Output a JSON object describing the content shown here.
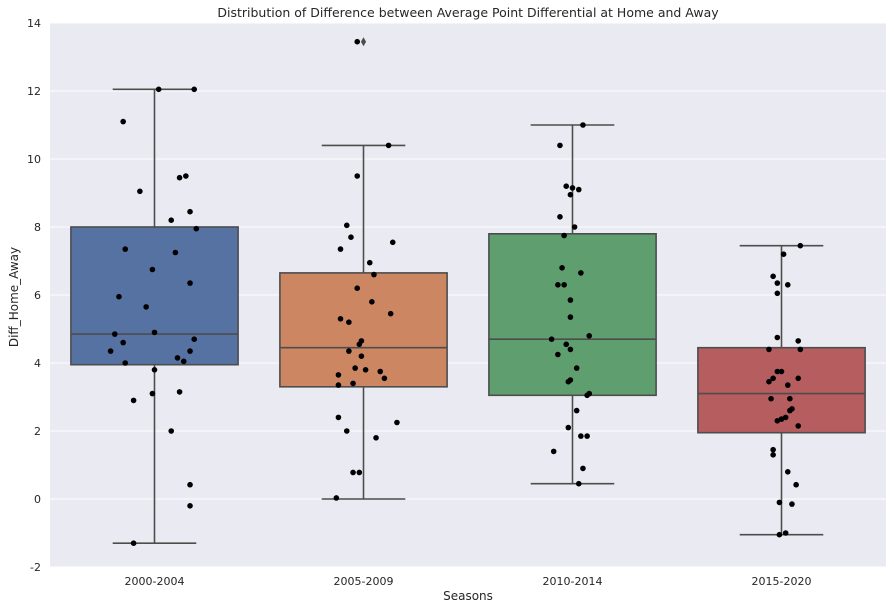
{
  "chart_data": {
    "type": "box",
    "title": "Distribution of Difference between Average Point Differential at Home and Away",
    "xlabel": "Seasons",
    "ylabel": "Diff_Home_Away",
    "ylim": [
      -2,
      14
    ],
    "yticks": [
      -2,
      0,
      2,
      4,
      6,
      8,
      10,
      12,
      14
    ],
    "grid": true,
    "categories": [
      "2000-2004",
      "2005-2009",
      "2010-2014",
      "2015-2020"
    ],
    "colors": [
      "#5572a3",
      "#cc8661",
      "#5f9e6e",
      "#b65d60"
    ],
    "boxes": [
      {
        "whisker_low": -1.3,
        "q1": 3.95,
        "median": 4.85,
        "q3": 8.0,
        "whisker_high": 12.05,
        "outliers": []
      },
      {
        "whisker_low": 0.0,
        "q1": 3.3,
        "median": 4.45,
        "q3": 6.65,
        "whisker_high": 10.4,
        "outliers": [
          13.45
        ]
      },
      {
        "whisker_low": 0.45,
        "q1": 3.05,
        "median": 4.7,
        "q3": 7.8,
        "whisker_high": 11.0,
        "outliers": []
      },
      {
        "whisker_low": -1.05,
        "q1": 1.95,
        "median": 3.1,
        "q3": 4.45,
        "whisker_high": 7.45,
        "outliers": []
      }
    ],
    "points": [
      [
        [
          -1.3,
          -0.1
        ],
        [
          -0.2,
          0.17
        ],
        [
          0.42,
          0.17
        ],
        [
          2.0,
          0.08
        ],
        [
          2.9,
          -0.1
        ],
        [
          3.1,
          -0.01
        ],
        [
          3.15,
          0.12
        ],
        [
          3.8,
          0.0
        ],
        [
          4.0,
          -0.14
        ],
        [
          4.05,
          0.14
        ],
        [
          4.15,
          0.11
        ],
        [
          4.35,
          -0.21
        ],
        [
          4.35,
          0.17
        ],
        [
          4.6,
          -0.15
        ],
        [
          4.7,
          0.19
        ],
        [
          4.85,
          -0.19
        ],
        [
          4.9,
          0.0
        ],
        [
          5.65,
          -0.04
        ],
        [
          5.95,
          -0.17
        ],
        [
          6.35,
          0.17
        ],
        [
          6.75,
          -0.01
        ],
        [
          7.25,
          0.1
        ],
        [
          7.35,
          -0.14
        ],
        [
          7.95,
          0.2
        ],
        [
          8.2,
          0.08
        ],
        [
          8.45,
          0.17
        ],
        [
          9.05,
          -0.07
        ],
        [
          9.45,
          0.12
        ],
        [
          9.5,
          0.15
        ],
        [
          11.1,
          -0.15
        ],
        [
          12.05,
          0.02
        ],
        [
          12.05,
          0.19
        ]
      ],
      [
        [
          0.03,
          -0.13
        ],
        [
          0.78,
          -0.05
        ],
        [
          0.78,
          -0.02
        ],
        [
          1.8,
          0.06
        ],
        [
          2.0,
          -0.08
        ],
        [
          2.25,
          0.16
        ],
        [
          2.4,
          -0.12
        ],
        [
          3.35,
          -0.12
        ],
        [
          3.4,
          -0.05
        ],
        [
          3.55,
          0.1
        ],
        [
          3.65,
          -0.12
        ],
        [
          3.75,
          0.08
        ],
        [
          3.8,
          0.01
        ],
        [
          3.85,
          -0.04
        ],
        [
          4.2,
          -0.01
        ],
        [
          4.35,
          -0.07
        ],
        [
          4.55,
          -0.02
        ],
        [
          4.65,
          -0.01
        ],
        [
          5.2,
          -0.07
        ],
        [
          5.3,
          -0.11
        ],
        [
          5.45,
          0.13
        ],
        [
          5.8,
          0.04
        ],
        [
          6.2,
          -0.03
        ],
        [
          6.6,
          0.05
        ],
        [
          6.95,
          0.03
        ],
        [
          7.35,
          -0.11
        ],
        [
          7.55,
          0.14
        ],
        [
          7.7,
          -0.06
        ],
        [
          8.05,
          -0.08
        ],
        [
          9.5,
          -0.03
        ],
        [
          10.4,
          0.12
        ],
        [
          13.45,
          -0.03
        ]
      ],
      [
        [
          0.45,
          0.03
        ],
        [
          0.9,
          0.05
        ],
        [
          1.4,
          -0.09
        ],
        [
          1.85,
          0.04
        ],
        [
          1.85,
          0.07
        ],
        [
          2.1,
          -0.02
        ],
        [
          2.6,
          0.02
        ],
        [
          3.05,
          0.07
        ],
        [
          3.1,
          0.08
        ],
        [
          3.45,
          -0.02
        ],
        [
          3.5,
          -0.01
        ],
        [
          3.85,
          0.02
        ],
        [
          4.25,
          -0.07
        ],
        [
          4.4,
          -0.01
        ],
        [
          4.55,
          -0.03
        ],
        [
          4.7,
          -0.1
        ],
        [
          4.8,
          0.08
        ],
        [
          5.35,
          -0.01
        ],
        [
          5.85,
          -0.01
        ],
        [
          6.3,
          -0.07
        ],
        [
          6.3,
          -0.04
        ],
        [
          6.65,
          0.04
        ],
        [
          6.8,
          -0.05
        ],
        [
          7.75,
          -0.04
        ],
        [
          8.0,
          0.01
        ],
        [
          8.3,
          -0.06
        ],
        [
          8.95,
          -0.01
        ],
        [
          9.1,
          0.03
        ],
        [
          9.15,
          0.0
        ],
        [
          9.2,
          -0.03
        ],
        [
          10.4,
          -0.06
        ],
        [
          11.0,
          0.05
        ]
      ],
      [
        [
          -1.05,
          -0.01
        ],
        [
          -1.0,
          0.02
        ],
        [
          -0.15,
          0.05
        ],
        [
          -0.1,
          -0.01
        ],
        [
          0.42,
          0.07
        ],
        [
          0.8,
          0.03
        ],
        [
          1.3,
          -0.04
        ],
        [
          1.45,
          -0.04
        ],
        [
          2.15,
          0.08
        ],
        [
          2.3,
          -0.02
        ],
        [
          2.35,
          0.0
        ],
        [
          2.4,
          0.02
        ],
        [
          2.6,
          0.04
        ],
        [
          2.65,
          0.05
        ],
        [
          2.95,
          -0.05
        ],
        [
          2.95,
          0.04
        ],
        [
          3.35,
          0.03
        ],
        [
          3.45,
          -0.06
        ],
        [
          3.55,
          -0.04
        ],
        [
          3.55,
          0.08
        ],
        [
          3.75,
          -0.02
        ],
        [
          3.75,
          0.0
        ],
        [
          4.4,
          -0.06
        ],
        [
          4.4,
          0.09
        ],
        [
          4.65,
          0.08
        ],
        [
          4.75,
          -0.02
        ],
        [
          6.05,
          -0.02
        ],
        [
          6.3,
          0.03
        ],
        [
          6.35,
          -0.02
        ],
        [
          6.55,
          -0.04
        ],
        [
          7.2,
          0.01
        ],
        [
          7.45,
          0.09
        ]
      ]
    ]
  }
}
